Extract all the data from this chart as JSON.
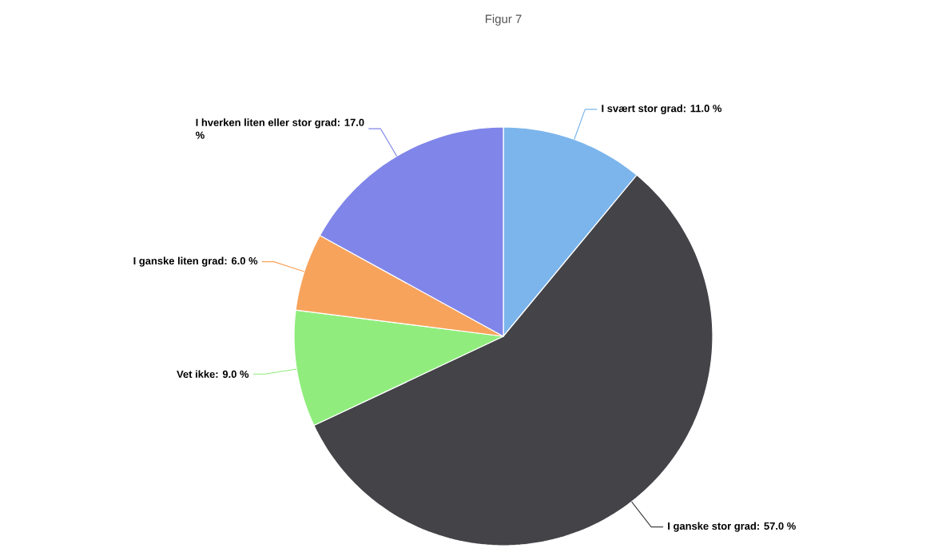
{
  "chart_data": {
    "type": "pie",
    "title": "Figur 7",
    "categories": [
      "I svært stor grad: 11.0 %",
      "I ganske stor grad: 57.0 %",
      "Vet ikke: 9.0 %",
      "I ganske liten grad: 6.0 %",
      "I hverken liten eller stor grad: 17.0 %"
    ],
    "values": [
      11,
      57,
      9,
      6,
      17
    ],
    "colors": [
      "#7cb5ec",
      "#434348",
      "#90ed7d",
      "#f7a35c",
      "#8085e9"
    ]
  }
}
